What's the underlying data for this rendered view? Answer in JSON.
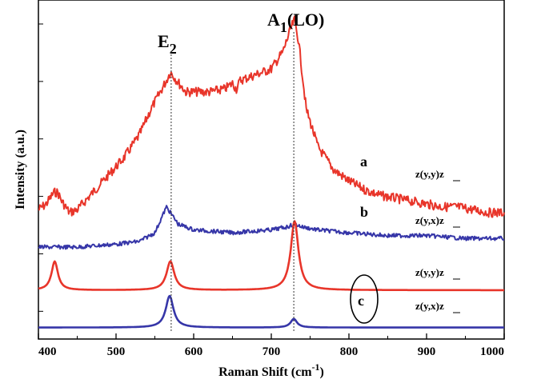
{
  "chart_data": {
    "type": "line",
    "xlabel": "Raman Shift (cm",
    "xlabel_sup": "-1",
    "xlabel_close": ")",
    "ylabel": "Intensity (a.u.)",
    "xlim": [
      400,
      1000
    ],
    "ylim": [
      0,
      100
    ],
    "xticks": [
      "400",
      "500",
      "600",
      "700",
      "800",
      "900",
      "1000"
    ],
    "y_tick_labels_shown": false,
    "grid": false,
    "annotations": {
      "e2": {
        "base": "E",
        "sub": "2",
        "x": 570
      },
      "a1": {
        "base": "A",
        "sub": "1",
        "suffix": "(LO)",
        "x": 730
      }
    },
    "curve_labels": {
      "a": "a",
      "b": "b",
      "c": "c"
    },
    "polarization_labels": {
      "a": "z(y,y)z",
      "b": "z(y,x)z",
      "c_top": "z(y,y)z",
      "c_bottom": "z(y,x)z"
    },
    "series": [
      {
        "id": "a",
        "color": "#e8352a",
        "noise": 1.6,
        "x": [
          400,
          410,
          420,
          425,
          430,
          440,
          450,
          470,
          490,
          510,
          530,
          545,
          555,
          565,
          570,
          578,
          590,
          600,
          620,
          640,
          650,
          655,
          660,
          680,
          700,
          715,
          725,
          730,
          735,
          745,
          760,
          780,
          800,
          820,
          840,
          860,
          880,
          900,
          920,
          940,
          960,
          980,
          1000
        ],
        "y": [
          73,
          71,
          67,
          67,
          70,
          74,
          73,
          67,
          61,
          55,
          47,
          38,
          33,
          28,
          25,
          28,
          32,
          32,
          32,
          31,
          29,
          31,
          28,
          26,
          24,
          18,
          10,
          7,
          14,
          38,
          51,
          59,
          63,
          66,
          68,
          69,
          70,
          71,
          72,
          72,
          73,
          74,
          74
        ]
      },
      {
        "id": "b",
        "color": "#3636a8",
        "noise": 0.7,
        "x": [
          400,
          450,
          500,
          530,
          550,
          560,
          565,
          570,
          580,
          600,
          650,
          700,
          720,
          730,
          740,
          760,
          800,
          850,
          900,
          950,
          1000
        ],
        "y": [
          86,
          86,
          85,
          84,
          81,
          75,
          72,
          74,
          78,
          80,
          81,
          80,
          79,
          78,
          79,
          80,
          81,
          82,
          82,
          83,
          83
        ],
        "x_note": "peak max near 567"
      },
      {
        "id": "c_top",
        "color": "#e8352a",
        "noise": 0,
        "baseline": 101,
        "peaks": [
          {
            "x": 421,
            "amp": 10,
            "w": 5
          },
          {
            "x": 570,
            "amp": 10,
            "w": 6
          },
          {
            "x": 730,
            "amp": 24,
            "w": 6
          }
        ]
      },
      {
        "id": "c_bottom",
        "color": "#3636a8",
        "noise": 0,
        "baseline": 114,
        "peaks": [
          {
            "x": 569,
            "amp": 11,
            "w": 6
          },
          {
            "x": 729,
            "amp": 3,
            "w": 5
          }
        ]
      }
    ]
  }
}
